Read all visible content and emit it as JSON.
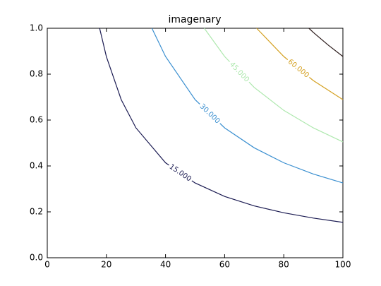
{
  "chart_data": {
    "type": "contour",
    "title": "imagenary",
    "xlim": [
      0,
      100
    ],
    "ylim": [
      0,
      1
    ],
    "xticks": [
      0,
      20,
      40,
      60,
      80,
      100
    ],
    "yticks": [
      {
        "value": 0,
        "label": "0.0"
      },
      0.2,
      0.4,
      0.6,
      0.8,
      {
        "value": 1,
        "label": "1.0"
      }
    ],
    "series": [
      {
        "label": "15.000",
        "color": "#1b1b52",
        "x": [
          17.7,
          20,
          25,
          30,
          40,
          50,
          60,
          70,
          80,
          90,
          100
        ],
        "values": [
          1,
          0.876,
          0.689,
          0.566,
          0.414,
          0.326,
          0.267,
          0.226,
          0.196,
          0.173,
          0.154
        ]
      },
      {
        "label": "30.000",
        "color": "#3a8fd0",
        "x": [
          35.4,
          40,
          50,
          60,
          70,
          80,
          90,
          100
        ],
        "values": [
          1,
          0.877,
          0.689,
          0.566,
          0.479,
          0.414,
          0.365,
          0.326
        ]
      },
      {
        "label": "45.000",
        "color": "#aee8ae",
        "x": [
          53.1,
          60,
          70,
          80,
          90,
          100
        ],
        "values": [
          1,
          0.877,
          0.742,
          0.642,
          0.566,
          0.505
        ]
      },
      {
        "label": "60.000",
        "color": "#d4a020",
        "x": [
          70.8,
          80,
          90,
          100
        ],
        "values": [
          1,
          0.877,
          0.772,
          0.689
        ]
      },
      {
        "color": "#2a1a1a",
        "x": [
          88.5,
          90,
          95,
          100
        ],
        "values": [
          1,
          0.982,
          0.927,
          0.877
        ]
      }
    ]
  }
}
